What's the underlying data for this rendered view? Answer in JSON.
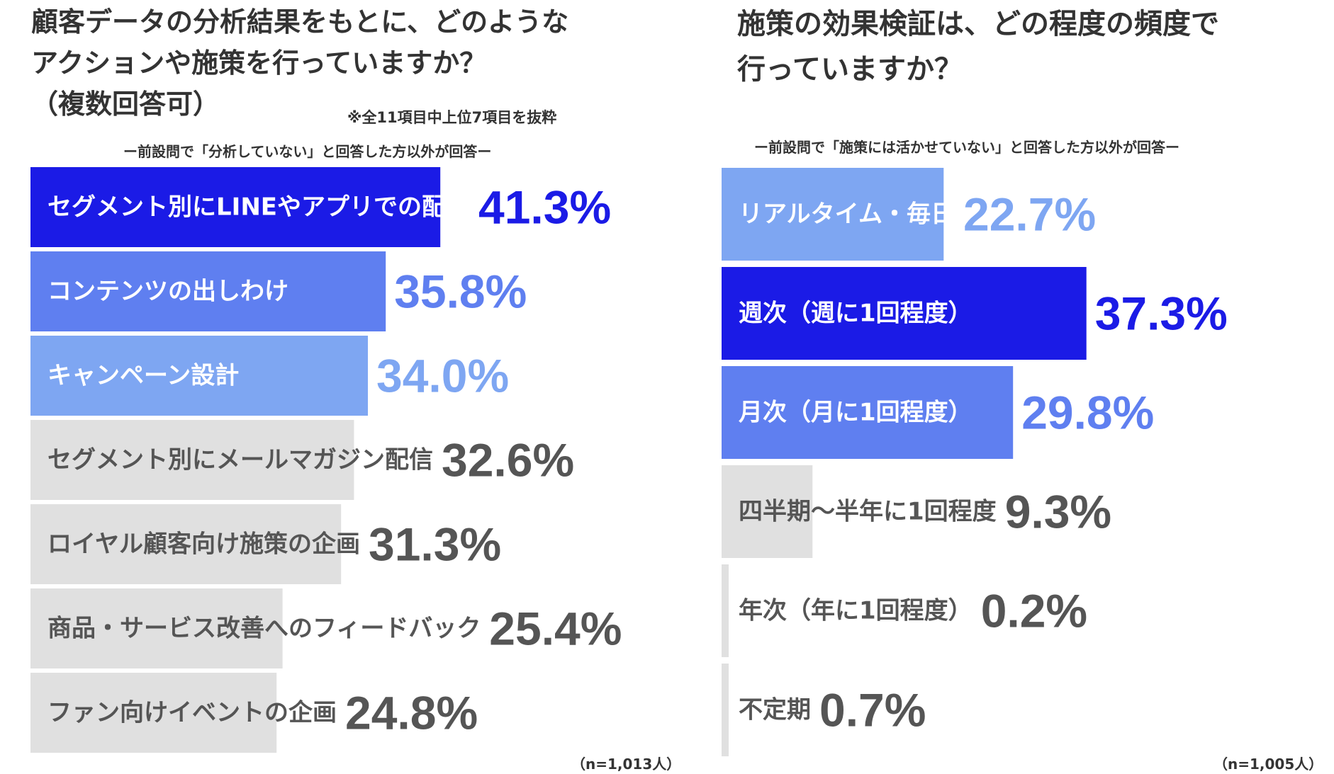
{
  "colors": {
    "highlight": "#1b1be6",
    "mid": "#5f7ff0",
    "light": "#7ea6f2",
    "grey_bar": "#e0e0e0",
    "grey_text": "#555555",
    "white_text": "#ffffff"
  },
  "left": {
    "title_lines": [
      "顧客データの分析結果をもとに、どのような",
      "アクションや施策を行っていますか？",
      "（複数回答可）"
    ],
    "note": "※全11項目中上位7項目を抜粋",
    "subtitle": "ー前設問で「分析していない」と回答した方以外が回答ー",
    "sample": "（n=1,013人）"
  },
  "right": {
    "title_lines": [
      "施策の効果検証は、どの程度の頻度で",
      "行っていますか？"
    ],
    "subtitle": "ー前設問で「施策には活かせていない」と回答した方以外が回答ー",
    "sample": "（n=1,005人）"
  },
  "chart_data": [
    {
      "type": "bar",
      "orientation": "horizontal",
      "xlim": [
        0,
        50
      ],
      "grid": false,
      "legend": "none",
      "unit": "%",
      "categories": [
        "セグメント別にLINEやアプリでの配信",
        "コンテンツの出しわけ",
        "キャンペーン設計",
        "セグメント別にメールマガジン配信",
        "ロイヤル顧客向け施策の企画",
        "商品・サービス改善へのフィードバック",
        "ファン向けイベントの企画"
      ],
      "values": [
        41.3,
        35.8,
        34.0,
        32.6,
        31.3,
        25.4,
        24.8
      ],
      "value_labels": [
        "41.3%",
        "35.8%",
        "34.0%",
        "32.6%",
        "31.3%",
        "25.4%",
        "24.8%"
      ],
      "bar_colors": [
        "highlight",
        "mid",
        "light",
        "grey",
        "grey",
        "grey",
        "grey"
      ]
    },
    {
      "type": "bar",
      "orientation": "horizontal",
      "xlim": [
        0,
        50
      ],
      "grid": false,
      "legend": "none",
      "unit": "%",
      "categories": [
        "リアルタイム・毎日",
        "週次（週に1回程度）",
        "月次（月に1回程度）",
        "四半期〜半年に1回程度",
        "年次（年に1回程度）",
        "不定期"
      ],
      "values": [
        22.7,
        37.3,
        29.8,
        9.3,
        0.2,
        0.7
      ],
      "value_labels": [
        "22.7%",
        "37.3%",
        "29.8%",
        "9.3%",
        "0.2%",
        "0.7%"
      ],
      "bar_colors": [
        "light",
        "highlight",
        "mid",
        "grey",
        "grey",
        "grey"
      ]
    }
  ]
}
